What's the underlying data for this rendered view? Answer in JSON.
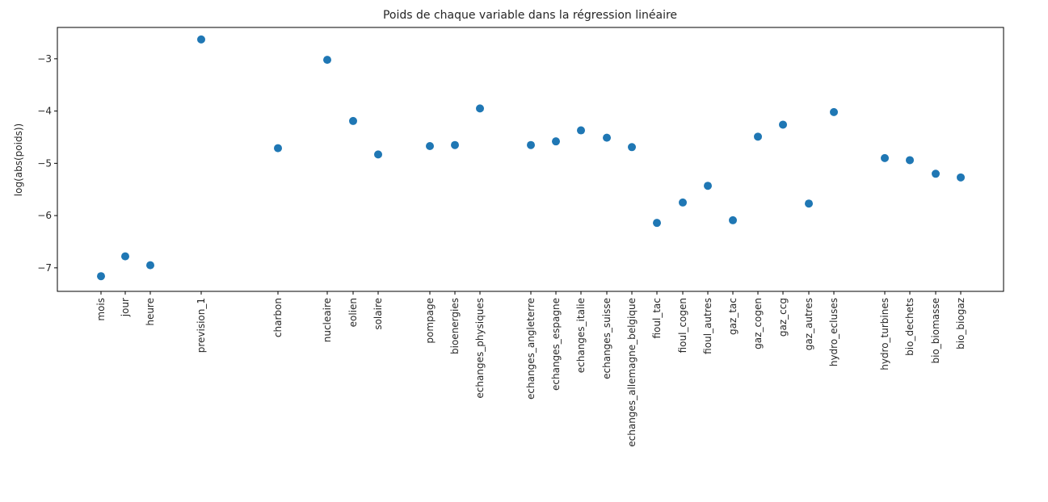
{
  "chart_data": {
    "type": "scatter",
    "title": "Poids de chaque variable dans la régression linéaire",
    "xlabel": "",
    "ylabel": "log(abs(poids))",
    "ylim": [
      -7.45,
      -2.4
    ],
    "yticks": [
      -7,
      -6,
      -5,
      -4,
      -3
    ],
    "ytick_labels": [
      "−7",
      "−6",
      "−5",
      "−4",
      "−3"
    ],
    "grid": false,
    "marker_color": "#1f77b4",
    "points": [
      {
        "label": "mois",
        "y": -7.16
      },
      {
        "label": "jour",
        "y": -6.78
      },
      {
        "label": "heure",
        "y": -6.95
      },
      {
        "label": "prevision_1",
        "y": -2.63
      },
      {
        "label": "charbon",
        "y": -4.71
      },
      {
        "label": "nucleaire",
        "y": -3.02
      },
      {
        "label": "eolien",
        "y": -4.19
      },
      {
        "label": "solaire",
        "y": -4.83
      },
      {
        "label": "pompage",
        "y": -4.67
      },
      {
        "label": "bioenergies",
        "y": -4.65
      },
      {
        "label": "echanges_physiques",
        "y": -3.95
      },
      {
        "label": "echanges_angleterre",
        "y": -4.65
      },
      {
        "label": "echanges_espagne",
        "y": -4.58
      },
      {
        "label": "echanges_italie",
        "y": -4.37
      },
      {
        "label": "echanges_suisse",
        "y": -4.51
      },
      {
        "label": "echanges_allemagne_belgique",
        "y": -4.69
      },
      {
        "label": "fioul_tac",
        "y": -6.14
      },
      {
        "label": "fioul_cogen",
        "y": -5.75
      },
      {
        "label": "fioul_autres",
        "y": -5.43
      },
      {
        "label": "gaz_tac",
        "y": -6.09
      },
      {
        "label": "gaz_cogen",
        "y": -4.49
      },
      {
        "label": "gaz_ccg",
        "y": -4.26
      },
      {
        "label": "gaz_autres",
        "y": -5.77
      },
      {
        "label": "hydro_ecluses",
        "y": -4.02
      },
      {
        "label": "hydro_turbines",
        "y": -4.9
      },
      {
        "label": "bio_dechets",
        "y": -4.94
      },
      {
        "label": "bio_biomasse",
        "y": -5.2
      },
      {
        "label": "bio_biogaz",
        "y": -5.27
      }
    ]
  }
}
